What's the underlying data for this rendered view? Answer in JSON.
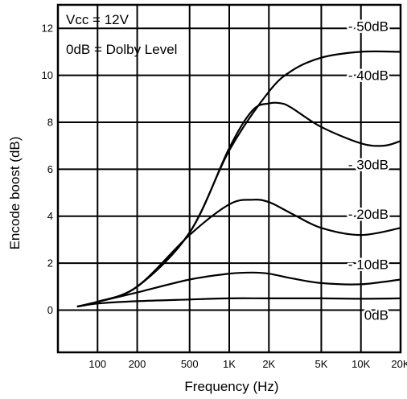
{
  "chart_data": {
    "type": "line",
    "xlabel": "Frequency (Hz)",
    "ylabel": "Encode boost (dB)",
    "xscale": "log",
    "xlim": [
      50,
      20000
    ],
    "ylim": [
      -1.8,
      13
    ],
    "grid": true,
    "x_ticks": [
      {
        "value": 100,
        "label": "100"
      },
      {
        "value": 200,
        "label": "200"
      },
      {
        "value": 500,
        "label": "500"
      },
      {
        "value": 1000,
        "label": "1K"
      },
      {
        "value": 2000,
        "label": "2K"
      },
      {
        "value": 5000,
        "label": "5K"
      },
      {
        "value": 10000,
        "label": "10K"
      },
      {
        "value": 20000,
        "label": "20K"
      }
    ],
    "y_ticks": [
      {
        "value": 0,
        "label": "0"
      },
      {
        "value": 2,
        "label": "2"
      },
      {
        "value": 4,
        "label": "4"
      },
      {
        "value": 6,
        "label": "6"
      },
      {
        "value": 8,
        "label": "8"
      },
      {
        "value": 10,
        "label": "10"
      },
      {
        "value": 12,
        "label": "12"
      }
    ],
    "annotations": [
      "Vcc = 12V",
      "0dB = Dolby Level"
    ],
    "series": [
      {
        "name": "- 50dB",
        "label_y": 12.1,
        "x": [
          70,
          100,
          200,
          500,
          1000,
          2000,
          3000,
          5000,
          10000,
          20000
        ],
        "y": [
          0.15,
          0.35,
          1.0,
          3.3,
          6.8,
          9.3,
          10.2,
          10.75,
          11.0,
          11.0
        ]
      },
      {
        "name": "- 40dB",
        "label_y": 10.0,
        "x": [
          70,
          100,
          200,
          500,
          1000,
          1500,
          2000,
          2500,
          3000,
          5000,
          10000,
          15000,
          20000
        ],
        "y": [
          0.15,
          0.35,
          1.0,
          3.3,
          6.9,
          8.5,
          8.8,
          8.8,
          8.6,
          7.8,
          7.1,
          7.0,
          7.2
        ]
      },
      {
        "name": "- 30dB",
        "label_y": 6.2,
        "x": [
          70,
          100,
          200,
          500,
          1000,
          1500,
          2000,
          3000,
          5000,
          10000,
          20000
        ],
        "y": [
          0.15,
          0.35,
          1.0,
          3.2,
          4.5,
          4.7,
          4.6,
          4.1,
          3.5,
          3.2,
          3.5
        ]
      },
      {
        "name": "- 20dB",
        "label_y": 4.1,
        "x": [
          70,
          100,
          200,
          500,
          1000,
          1500,
          2000,
          3000,
          5000,
          10000,
          20000
        ],
        "y": [
          0.15,
          0.35,
          0.75,
          1.3,
          1.55,
          1.6,
          1.55,
          1.35,
          1.15,
          1.1,
          1.3
        ]
      },
      {
        "name": "- 10dB",
        "label_y": 1.95,
        "x": [
          70,
          100,
          200,
          500,
          1000,
          2000,
          5000,
          10000,
          20000
        ],
        "y": [
          0.15,
          0.28,
          0.38,
          0.45,
          0.5,
          0.5,
          0.5,
          0.48,
          0.5
        ]
      },
      {
        "name": "0dB",
        "label_y": -0.2,
        "x": [],
        "y": []
      }
    ]
  }
}
